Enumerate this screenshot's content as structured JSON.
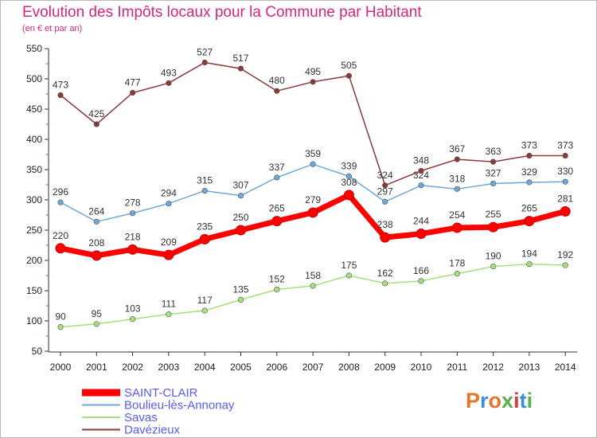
{
  "chart_data": {
    "type": "line",
    "title": "Evolution des Impôts locaux pour la Commune par Habitant",
    "subtitle": "(en € et par an)",
    "x": [
      "2000",
      "2001",
      "2002",
      "2003",
      "2004",
      "2005",
      "2006",
      "2007",
      "2008",
      "2009",
      "2010",
      "2011",
      "2012",
      "2013",
      "2014"
    ],
    "ylim": [
      50,
      550
    ],
    "yticks": [
      50,
      100,
      150,
      200,
      250,
      300,
      350,
      400,
      450,
      500,
      550
    ],
    "grid": false,
    "legend_position": "bottom-left",
    "series": [
      {
        "name": "SAINT-CLAIR",
        "color": "#ff0000",
        "values": [
          220,
          208,
          218,
          209,
          235,
          250,
          265,
          279,
          308,
          238,
          244,
          254,
          255,
          265,
          281
        ]
      },
      {
        "name": "Boulieu-lès-Annonay",
        "color": "#6fa8d8",
        "values": [
          296,
          264,
          278,
          294,
          315,
          307,
          337,
          359,
          339,
          297,
          324,
          318,
          327,
          329,
          330
        ]
      },
      {
        "name": "Savas",
        "color": "#a6e07a",
        "values": [
          90,
          95,
          103,
          111,
          117,
          135,
          152,
          158,
          175,
          162,
          166,
          178,
          190,
          194,
          192
        ]
      },
      {
        "name": "Davézieux",
        "color": "#8b3a3a",
        "values": [
          473,
          425,
          477,
          493,
          527,
          517,
          480,
          495,
          505,
          324,
          348,
          367,
          363,
          373,
          373
        ]
      }
    ]
  },
  "logo": {
    "text": "Proxiti",
    "letters": [
      "P",
      "r",
      "o",
      "x",
      "i",
      "t",
      "i"
    ],
    "colors": [
      "#e8732a",
      "#3a8fd8",
      "#e8732a",
      "#5ab04a",
      "#d93a3a",
      "#3a8fd8",
      "#5ab04a"
    ]
  }
}
